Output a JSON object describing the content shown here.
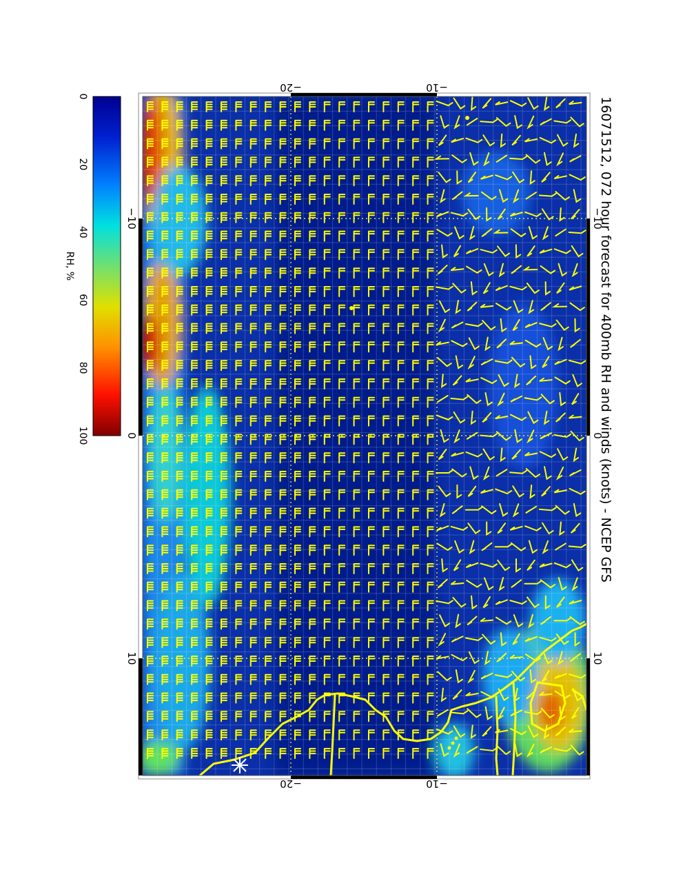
{
  "title": "16071512, 072 hour forecast for 400mb RH and winds (knots) - NCEP GFS",
  "colorbar": {
    "label": "RH, %",
    "ticks": [
      "0",
      "20",
      "40",
      "60",
      "80",
      "100"
    ]
  },
  "axes": {
    "top_ticks": [
      "−20",
      "−10"
    ],
    "bottom_ticks": [
      "−20",
      "−10"
    ],
    "left_ticks": [
      "−10",
      "0",
      "10"
    ],
    "right_ticks": [
      "−10",
      "0",
      "10"
    ]
  },
  "colors": {
    "background_field": "#0a2fa8",
    "deep_field": "#061c8c",
    "wind_barbs": "#ffff00",
    "coastline": "#ffff00",
    "grid": "#ffffff",
    "marker": "#ffffff"
  },
  "map": {
    "variable": "400mb RH",
    "overlay": "wind barbs (knots)",
    "grid_lines": true,
    "coastline": true
  }
}
